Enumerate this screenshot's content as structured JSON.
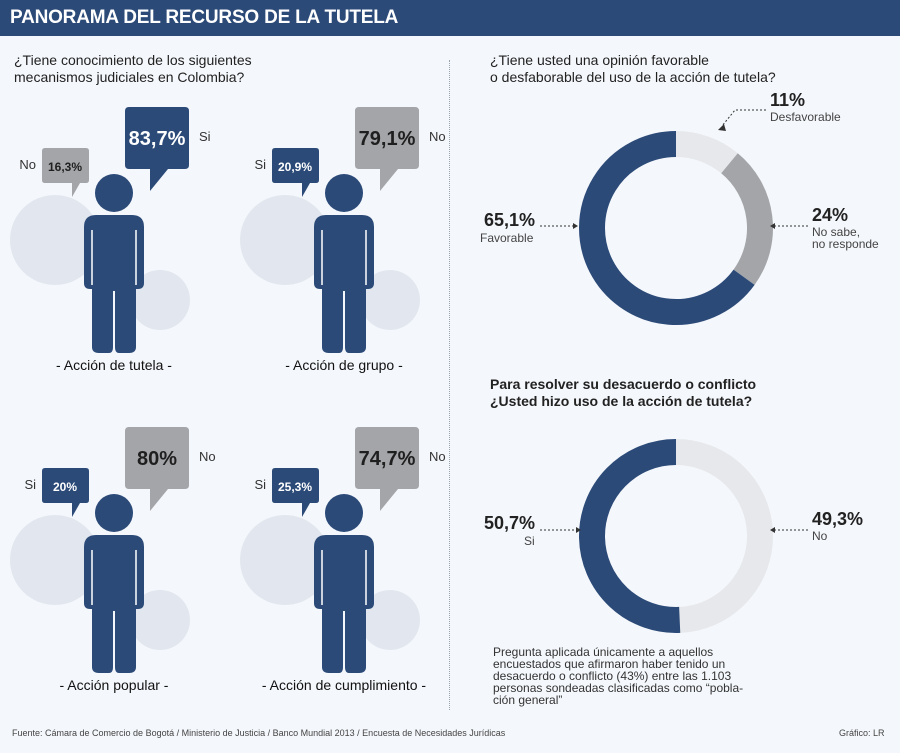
{
  "header": {
    "title": "PANORAMA DEL RECURSO DE LA TUTELA"
  },
  "colors": {
    "navy": "#2b4a78",
    "gray": "#a3a5a8",
    "light": "#e6e8eb",
    "circle": "#e2e7ef"
  },
  "left": {
    "question": [
      "¿Tiene conocimiento de los siguientes",
      "mecanismos judiciales en Colombia?"
    ],
    "figures": [
      {
        "caption": "- Acción de tutela -",
        "si_value": "83,7%",
        "no_value": "16,3%",
        "si_label": "Si",
        "no_label": "No",
        "big": "si"
      },
      {
        "caption": "- Acción de grupo -",
        "si_value": "20,9%",
        "no_value": "79,1%",
        "si_label": "Si",
        "no_label": "No",
        "big": "no"
      },
      {
        "caption": "- Acción popular -",
        "si_value": "20%",
        "no_value": "80%",
        "si_label": "Si",
        "no_label": "No",
        "big": "no"
      },
      {
        "caption": "- Acción de cumplimiento -",
        "si_value": "25,3%",
        "no_value": "74,7%",
        "si_label": "Si",
        "no_label": "No",
        "big": "no"
      }
    ]
  },
  "chart_data": [
    {
      "type": "pie",
      "title": "¿Tiene usted una opinión favorable o desfaborable del uso de la acción de tutela?",
      "series": [
        {
          "name": "Favorable",
          "value": 65.1,
          "display": "65,1%",
          "color": "#2b4a78"
        },
        {
          "name": "No sabe, no responde",
          "value": 24,
          "display": "24%",
          "color": "#a3a5a8"
        },
        {
          "name": "Desfavorable",
          "value": 11,
          "display": "11%",
          "color": "#e6e8eb"
        }
      ]
    },
    {
      "type": "pie",
      "title": "Para resolver su desacuerdo o conflicto ¿Usted hizo uso de la acción de tutela?",
      "series": [
        {
          "name": "Si",
          "value": 50.7,
          "display": "50,7%",
          "color": "#2b4a78"
        },
        {
          "name": "No",
          "value": 49.3,
          "display": "49,3%",
          "color": "#e6e8eb"
        }
      ]
    }
  ],
  "right": {
    "q1": [
      "¿Tiene usted una opinión favorable",
      "o desfaborable del uso de la acción de tutela?"
    ],
    "q1_labels": {
      "fav_pct": "65,1%",
      "fav": "Favorable",
      "des_pct": "11%",
      "des": "Desfavorable",
      "ns_pct": "24%",
      "ns1": "No sabe,",
      "ns2": "no responde"
    },
    "q2": [
      "Para resolver su desacuerdo o conflicto",
      "¿Usted hizo uso de la acción de tutela?"
    ],
    "q2_labels": {
      "si_pct": "50,7%",
      "si": "Si",
      "no_pct": "49,3%",
      "no": "No"
    },
    "note": [
      "Pregunta aplicada únicamente a aquellos",
      "encuestados que afirmaron haber tenido un",
      "desacuerdo o conflicto (43%) entre las 1.103",
      "personas sondeadas clasificadas como “pobla-",
      "ción general”"
    ]
  },
  "footer": {
    "source": "Fuente: Cámara de Comercio de Bogotá / Ministerio de Justicia / Banco Mundial 2013 / Encuesta de Necesidades Jurídicas",
    "credit": "Gráfico: LR"
  }
}
